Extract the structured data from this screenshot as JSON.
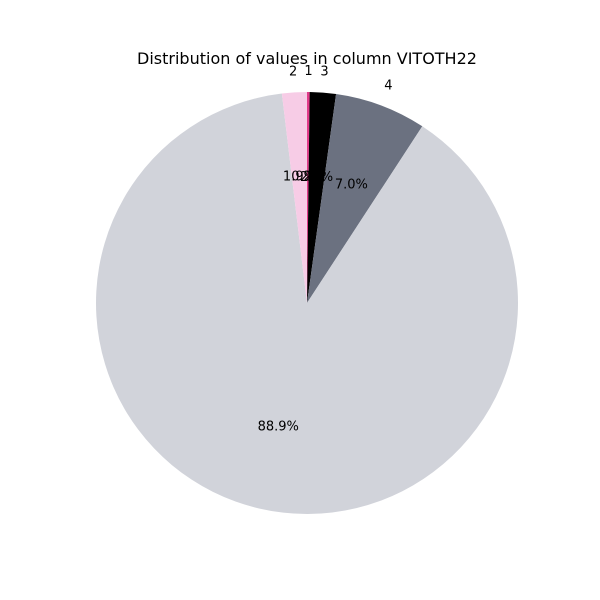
{
  "chart_data": {
    "type": "pie",
    "title": "Distribution of values in column VITOTH22",
    "slices": [
      {
        "label": "1",
        "value": 0.2,
        "pct_text": "0.2%",
        "color": "#e23b8a"
      },
      {
        "label": "3",
        "value": 2.0,
        "pct_text": "2.0%",
        "color": "#000000"
      },
      {
        "label": "4",
        "value": 7.0,
        "pct_text": "7.0%",
        "color": "#6b7180"
      },
      {
        "label": "",
        "value": 88.9,
        "pct_text": "88.9%",
        "color": "#d1d3da"
      },
      {
        "label": "2",
        "value": 1.9,
        "pct_text": "1.9%",
        "color": "#f7cce6"
      }
    ],
    "start_angle_deg": 90,
    "direction": "clockwise"
  }
}
